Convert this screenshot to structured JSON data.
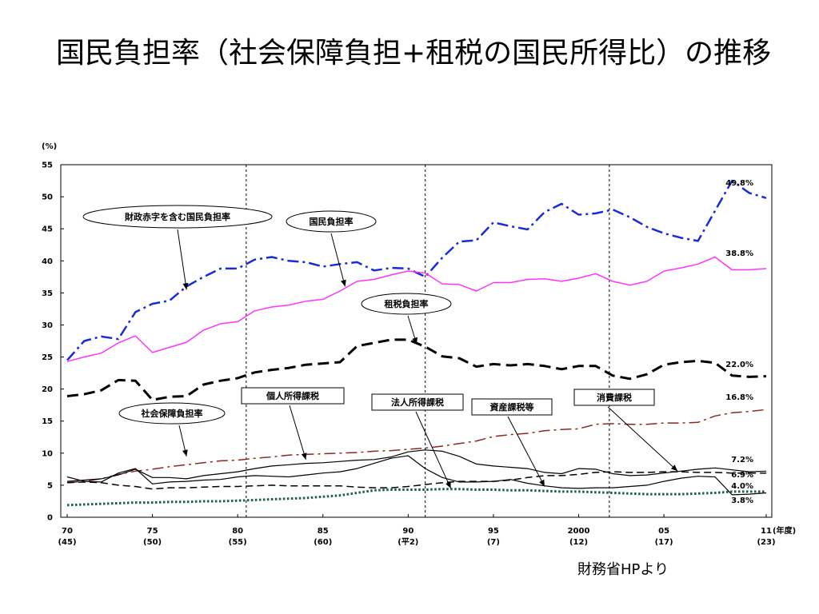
{
  "slide": {
    "title": "国民負担率（社会保障負担+租税の国民所得比）の推移",
    "source": "財務省HPより"
  },
  "chart_data": {
    "type": "line",
    "y_unit": "(%)",
    "x_unit": "(年度)",
    "ylim": [
      0,
      55
    ],
    "y_ticks": [
      0,
      5,
      10,
      15,
      20,
      25,
      30,
      35,
      40,
      45,
      50,
      55
    ],
    "xlim": [
      1970,
      2011
    ],
    "x_tick_labels": [
      {
        "x": 1970,
        "top": "70",
        "bottom": "(45)"
      },
      {
        "x": 1975,
        "top": "75",
        "bottom": "(50)"
      },
      {
        "x": 1980,
        "top": "80",
        "bottom": "(55)"
      },
      {
        "x": 1985,
        "top": "85",
        "bottom": "(60)"
      },
      {
        "x": 1990,
        "top": "90",
        "bottom": "(平2)"
      },
      {
        "x": 1995,
        "top": "95",
        "bottom": "(7)"
      },
      {
        "x": 2000,
        "top": "2000",
        "bottom": "(12)"
      },
      {
        "x": 2005,
        "top": "05",
        "bottom": "(17)"
      },
      {
        "x": 2011,
        "top": "11",
        "bottom": "(23)"
      }
    ],
    "vertical_dividers": [
      1980.5,
      1991,
      2001.8
    ],
    "grid": false,
    "x": [
      1970,
      1971,
      1972,
      1973,
      1974,
      1975,
      1976,
      1977,
      1978,
      1979,
      1980,
      1981,
      1982,
      1983,
      1984,
      1985,
      1986,
      1987,
      1988,
      1989,
      1990,
      1991,
      1992,
      1993,
      1994,
      1995,
      1996,
      1997,
      1998,
      1999,
      2000,
      2001,
      2002,
      2003,
      2004,
      2005,
      2006,
      2007,
      2008,
      2009,
      2010,
      2011
    ],
    "series": [
      {
        "name": "財政赤字を含む国民負担率",
        "color": "#1a2bd6",
        "style": "dashdot",
        "width": 2.5,
        "values": [
          24.5,
          27.5,
          28.2,
          27.8,
          32.0,
          33.3,
          33.8,
          36.0,
          37.5,
          38.8,
          38.8,
          40.2,
          40.6,
          40.0,
          39.8,
          39.1,
          39.5,
          39.8,
          38.5,
          38.9,
          38.8,
          37.5,
          40.5,
          43.0,
          43.2,
          46.0,
          45.4,
          44.9,
          47.6,
          48.9,
          47.2,
          47.4,
          48.0,
          46.8,
          45.3,
          44.3,
          43.6,
          43.1,
          47.8,
          52.5,
          50.6,
          49.8
        ],
        "end_label": "49.8%"
      },
      {
        "name": "国民負担率",
        "color": "#ff33ff",
        "style": "solid",
        "width": 1.5,
        "values": [
          24.3,
          25.0,
          25.6,
          27.2,
          28.3,
          25.7,
          26.5,
          27.3,
          29.2,
          30.2,
          30.5,
          32.2,
          32.8,
          33.1,
          33.7,
          34.0,
          35.3,
          36.8,
          37.1,
          37.8,
          38.4,
          38.1,
          36.4,
          36.3,
          35.3,
          36.6,
          36.6,
          37.1,
          37.2,
          36.8,
          37.3,
          38.0,
          36.8,
          36.2,
          36.8,
          38.4,
          38.9,
          39.5,
          40.6,
          38.6,
          38.6,
          38.8
        ],
        "end_label": "38.8%"
      },
      {
        "name": "租税負担率",
        "color": "#000000",
        "style": "longdash",
        "width": 3,
        "values": [
          18.9,
          19.2,
          19.8,
          21.4,
          21.3,
          18.3,
          18.8,
          18.9,
          20.7,
          21.3,
          21.7,
          22.6,
          23.0,
          23.3,
          23.8,
          24.0,
          24.2,
          26.7,
          27.2,
          27.7,
          27.7,
          26.6,
          25.1,
          24.8,
          23.5,
          23.9,
          23.7,
          23.9,
          23.6,
          23.1,
          23.6,
          23.6,
          22.1,
          21.6,
          22.3,
          23.8,
          24.2,
          24.4,
          24.1,
          22.1,
          21.9,
          22.0
        ],
        "end_label": "22.0%"
      },
      {
        "name": "消費課税",
        "color": "#8b2a22",
        "style": "dashdot",
        "width": 1.5,
        "values": [
          5.4,
          5.6,
          6.0,
          6.7,
          7.2,
          7.5,
          7.9,
          8.2,
          8.5,
          8.8,
          8.9,
          9.2,
          9.4,
          9.7,
          9.8,
          9.9,
          10.0,
          10.1,
          10.3,
          10.4,
          10.6,
          10.8,
          11.1,
          11.5,
          11.9,
          12.6,
          12.9,
          13.1,
          13.5,
          13.7,
          13.8,
          14.5,
          14.6,
          14.5,
          14.5,
          14.7,
          14.7,
          14.8,
          15.8,
          16.3,
          16.5,
          16.8
        ],
        "end_label": "16.8%"
      },
      {
        "name": "個人所得課税",
        "color": "#000000",
        "style": "solid",
        "width": 1.2,
        "values": [
          5.6,
          5.8,
          6.0,
          6.6,
          7.5,
          6.2,
          6.2,
          6.0,
          6.5,
          6.8,
          7.1,
          7.6,
          8.0,
          8.2,
          8.4,
          8.5,
          8.7,
          8.9,
          9.0,
          9.4,
          10.2,
          10.5,
          10.3,
          9.5,
          8.3,
          8.0,
          7.8,
          7.6,
          7.0,
          6.8,
          7.6,
          7.5,
          6.8,
          6.5,
          6.6,
          6.9,
          7.2,
          7.5,
          7.7,
          7.4,
          7.1,
          7.2
        ],
        "end_label": "7.2%"
      },
      {
        "name": "法人所得課税",
        "color": "#000000",
        "style": "solid",
        "width": 1.2,
        "values": [
          6.3,
          5.6,
          5.5,
          6.9,
          7.6,
          5.2,
          5.5,
          5.6,
          5.8,
          5.9,
          6.3,
          6.5,
          6.4,
          6.3,
          6.6,
          6.9,
          7.1,
          7.6,
          8.4,
          9.2,
          9.6,
          7.6,
          6.2,
          5.5,
          5.5,
          5.6,
          5.9,
          5.3,
          4.9,
          4.6,
          4.5,
          4.6,
          4.6,
          4.8,
          5.0,
          5.6,
          6.1,
          6.4,
          6.3,
          3.5,
          3.6,
          3.8
        ],
        "end_label": "3.8%"
      },
      {
        "name": "社会保障負担率",
        "color": "#000000",
        "style": "dashed",
        "width": 1.5,
        "values": [
          5.4,
          5.5,
          5.4,
          5.0,
          4.8,
          4.4,
          4.6,
          4.6,
          4.7,
          4.8,
          4.8,
          4.9,
          5.0,
          4.9,
          4.9,
          4.9,
          4.9,
          4.7,
          4.6,
          4.6,
          4.8,
          5.1,
          5.4,
          5.6,
          5.6,
          5.6,
          5.8,
          6.2,
          6.5,
          6.5,
          6.7,
          7.0,
          7.1,
          7.0,
          7.0,
          7.1,
          7.1,
          7.0,
          7.0,
          6.9,
          6.9,
          6.9
        ],
        "end_label": "6.9%"
      },
      {
        "name": "資産課税等",
        "color": "#1b5e4a",
        "style": "dotted",
        "width": 3,
        "values": [
          1.9,
          2.0,
          2.1,
          2.2,
          2.3,
          2.3,
          2.4,
          2.4,
          2.5,
          2.5,
          2.6,
          2.7,
          2.8,
          2.9,
          3.0,
          3.2,
          3.4,
          3.8,
          4.2,
          4.3,
          4.3,
          4.3,
          4.4,
          4.4,
          4.3,
          4.3,
          4.2,
          4.2,
          4.1,
          4.0,
          4.0,
          3.9,
          3.8,
          3.7,
          3.6,
          3.6,
          3.6,
          3.7,
          3.8,
          4.0,
          4.0,
          4.0
        ],
        "end_label": "4.0%"
      }
    ],
    "annotations": [
      {
        "text": "財政赤字を含む国民負担率",
        "shape": "ellipse",
        "target_x": 1977,
        "target_y": 35.5
      },
      {
        "text": "国民負担率",
        "shape": "ellipse",
        "target_x": 1986.3,
        "target_y": 36.0
      },
      {
        "text": "租税負担率",
        "shape": "ellipse",
        "target_x": 1990.5,
        "target_y": 27.0
      },
      {
        "text": "社会保障負担率",
        "shape": "ellipse",
        "target_x": 1977,
        "target_y": 9.5
      },
      {
        "text": "個人所得課税",
        "shape": "rect",
        "target_x": 1984,
        "target_y": 9.0
      },
      {
        "text": "法人所得課税",
        "shape": "rect",
        "target_x": 1992.5,
        "target_y": 4.5
      },
      {
        "text": "資産課税等",
        "shape": "rect",
        "target_x": 1998,
        "target_y": 4.8
      },
      {
        "text": "消費課税",
        "shape": "rect",
        "target_x": 2005.8,
        "target_y": 7.2
      }
    ]
  }
}
